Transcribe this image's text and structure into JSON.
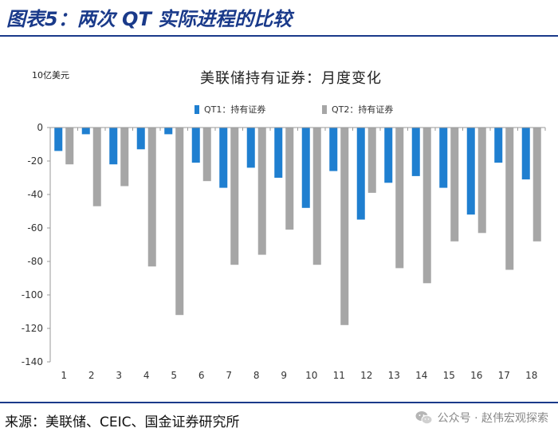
{
  "figure_title": "图表5：两次 QT 实际进程的比较",
  "source": "来源：美联储、CEIC、国金证券研究所",
  "watermark": {
    "icon": "wechat-icon",
    "text": "公众号 · 赵伟宏观探索"
  },
  "colors": {
    "header_blue": "#1a3a8a",
    "qt1": "#1f7fd0",
    "qt2": "#a6a6a6"
  },
  "chart_data": {
    "type": "bar",
    "title": "美联储持有证券：月度变化",
    "unit_label": "10亿美元",
    "xlabel": "",
    "ylabel": "",
    "categories": [
      "1",
      "2",
      "3",
      "4",
      "5",
      "6",
      "7",
      "8",
      "9",
      "10",
      "11",
      "12",
      "13",
      "14",
      "15",
      "16",
      "17",
      "18"
    ],
    "series": [
      {
        "name": "QT1：持有证券",
        "color": "#1f7fd0",
        "values": [
          -14,
          -4,
          -22,
          -13,
          -4,
          -21,
          -36,
          -24,
          -30,
          -48,
          -26,
          -55,
          -33,
          -29,
          -36,
          -52,
          -21,
          -31
        ]
      },
      {
        "name": "QT2：持有证券",
        "color": "#a6a6a6",
        "values": [
          -22,
          -47,
          -35,
          -83,
          -112,
          -32,
          -82,
          -76,
          -61,
          -82,
          -118,
          -39,
          -84,
          -93,
          -68,
          -63,
          -85,
          -68
        ]
      }
    ],
    "ylim": [
      -140,
      0
    ],
    "yticks": [
      0,
      -20,
      -40,
      -60,
      -80,
      -100,
      -120,
      -140
    ],
    "legend_position": "top",
    "grid": false
  }
}
